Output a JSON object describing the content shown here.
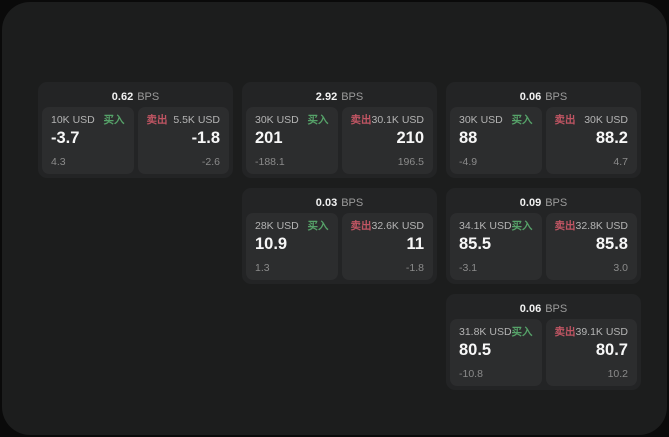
{
  "theme": {
    "page_bg": "#0a0a0a",
    "panel_bg": "#1c1d1d",
    "card_bg": "#232425",
    "tile_bg": "#2c2d2e",
    "text_primary": "#f7f7f7",
    "text_secondary": "#b4b4b4",
    "text_muted": "#8b8b8b",
    "buy_color": "#56a269",
    "sell_color": "#c05563"
  },
  "labels": {
    "bps_suffix": "BPS",
    "buy": "买入",
    "sell": "卖出"
  },
  "cards": [
    {
      "row": 1,
      "col": 1,
      "bps": "0.62",
      "buy": {
        "amount": "10K USD",
        "price": "-3.7",
        "delta": "4.3"
      },
      "sell": {
        "amount": "5.5K USD",
        "price": "-1.8",
        "delta": "-2.6"
      }
    },
    {
      "row": 1,
      "col": 2,
      "bps": "2.92",
      "buy": {
        "amount": "30K USD",
        "price": "201",
        "delta": "-188.1"
      },
      "sell": {
        "amount": "30.1K USD",
        "price": "210",
        "delta": "196.5"
      }
    },
    {
      "row": 1,
      "col": 3,
      "bps": "0.06",
      "buy": {
        "amount": "30K USD",
        "price": "88",
        "delta": "-4.9"
      },
      "sell": {
        "amount": "30K USD",
        "price": "88.2",
        "delta": "4.7"
      }
    },
    {
      "row": 2,
      "col": 2,
      "bps": "0.03",
      "buy": {
        "amount": "28K USD",
        "price": "10.9",
        "delta": "1.3"
      },
      "sell": {
        "amount": "32.6K USD",
        "price": "11",
        "delta": "-1.8"
      }
    },
    {
      "row": 2,
      "col": 3,
      "bps": "0.09",
      "buy": {
        "amount": "34.1K USD",
        "price": "85.5",
        "delta": "-3.1"
      },
      "sell": {
        "amount": "32.8K USD",
        "price": "85.8",
        "delta": "3.0"
      }
    },
    {
      "row": 3,
      "col": 3,
      "bps": "0.06",
      "buy": {
        "amount": "31.8K USD",
        "price": "80.5",
        "delta": "-10.8"
      },
      "sell": {
        "amount": "39.1K USD",
        "price": "80.7",
        "delta": "10.2"
      }
    }
  ]
}
